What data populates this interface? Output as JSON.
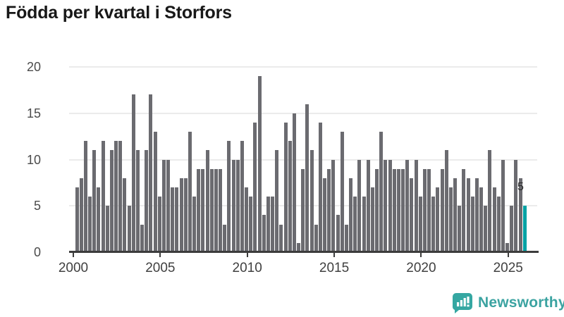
{
  "header": {
    "title": "Födda per kvartal i Storfors"
  },
  "chart_data": {
    "type": "bar",
    "title": "Födda per kvartal i Storfors",
    "x_unit": "quarter",
    "ylim": [
      0,
      20
    ],
    "yticks": [
      0,
      5,
      10,
      15,
      20
    ],
    "xticks": [
      2000,
      2005,
      2010,
      2015,
      2020,
      2025
    ],
    "grid": true,
    "legend": "none",
    "bar_color": "#6b6b70",
    "highlight_color": "#00a2a4",
    "years": [
      {
        "year": 2000,
        "quarters": [
          7,
          8,
          12,
          6
        ]
      },
      {
        "year": 2001,
        "quarters": [
          11,
          7,
          12,
          5
        ]
      },
      {
        "year": 2002,
        "quarters": [
          11,
          12,
          12,
          8
        ]
      },
      {
        "year": 2003,
        "quarters": [
          5,
          17,
          11,
          3
        ]
      },
      {
        "year": 2004,
        "quarters": [
          11,
          17,
          13,
          6
        ]
      },
      {
        "year": 2005,
        "quarters": [
          10,
          10,
          7,
          7
        ]
      },
      {
        "year": 2006,
        "quarters": [
          8,
          8,
          13,
          6
        ]
      },
      {
        "year": 2007,
        "quarters": [
          9,
          9,
          11,
          9
        ]
      },
      {
        "year": 2008,
        "quarters": [
          9,
          9,
          3,
          12
        ]
      },
      {
        "year": 2009,
        "quarters": [
          10,
          10,
          12,
          7
        ]
      },
      {
        "year": 2010,
        "quarters": [
          6,
          14,
          19,
          4
        ]
      },
      {
        "year": 2011,
        "quarters": [
          6,
          6,
          11,
          3
        ]
      },
      {
        "year": 2012,
        "quarters": [
          14,
          12,
          15,
          1
        ]
      },
      {
        "year": 2013,
        "quarters": [
          9,
          16,
          11,
          3
        ]
      },
      {
        "year": 2014,
        "quarters": [
          14,
          8,
          9,
          10
        ]
      },
      {
        "year": 2015,
        "quarters": [
          4,
          13,
          3,
          8
        ]
      },
      {
        "year": 2016,
        "quarters": [
          6,
          10,
          6,
          10
        ]
      },
      {
        "year": 2017,
        "quarters": [
          7,
          9,
          13,
          10
        ]
      },
      {
        "year": 2018,
        "quarters": [
          10,
          9,
          9,
          9
        ]
      },
      {
        "year": 2019,
        "quarters": [
          10,
          8,
          10,
          6
        ]
      },
      {
        "year": 2020,
        "quarters": [
          9,
          9,
          6,
          7
        ]
      },
      {
        "year": 2021,
        "quarters": [
          9,
          11,
          7,
          8
        ]
      },
      {
        "year": 2022,
        "quarters": [
          5,
          9,
          8,
          6
        ]
      },
      {
        "year": 2023,
        "quarters": [
          8,
          7,
          5,
          11
        ]
      },
      {
        "year": 2024,
        "quarters": [
          7,
          6,
          10,
          1
        ]
      },
      {
        "year": 2025,
        "quarters": [
          5,
          10,
          8,
          5
        ]
      }
    ],
    "highlight": {
      "year": 2025,
      "quarter": 4,
      "value": 5
    },
    "annotation": {
      "text": "5"
    }
  },
  "footer": {
    "brand": "Newsworthy",
    "logo_color": "#35a7a2"
  }
}
